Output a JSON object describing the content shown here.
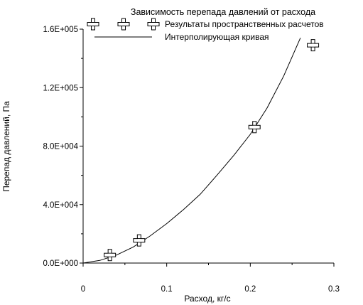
{
  "chart_data": {
    "type": "scatter",
    "title": "Зависимость перепада давлений от расхода",
    "xlabel": "Расход, кг/с",
    "ylabel": "Перепад давлений, Па",
    "xlim": [
      0,
      0.3
    ],
    "ylim": [
      0,
      160000
    ],
    "x_ticks": [
      0,
      0.1,
      0.2,
      0.3
    ],
    "x_tick_labels": [
      "0",
      "0.1",
      "0.2",
      "0.3"
    ],
    "y_ticks": [
      0,
      40000,
      80000,
      120000,
      160000
    ],
    "y_tick_labels": [
      "0.0E+000",
      "4.0E+004",
      "8.0E+004",
      "1.2E+005",
      "1.6E+005"
    ],
    "legend_position": "top",
    "series": [
      {
        "name": "Результаты пространственных расчетов",
        "kind": "markers",
        "x": [
          0.032,
          0.067,
          0.205,
          0.275
        ],
        "y": [
          5500,
          15500,
          93000,
          149000
        ]
      },
      {
        "name": "Интерполирующая кривая",
        "kind": "line",
        "x": [
          0,
          0.02,
          0.04,
          0.06,
          0.08,
          0.1,
          0.12,
          0.14,
          0.16,
          0.18,
          0.2,
          0.22,
          0.24,
          0.26
        ],
        "y": [
          0,
          1800,
          5500,
          11000,
          18500,
          27000,
          36500,
          47000,
          60000,
          73500,
          88000,
          106000,
          128000,
          154000
        ]
      }
    ],
    "grid": false
  }
}
